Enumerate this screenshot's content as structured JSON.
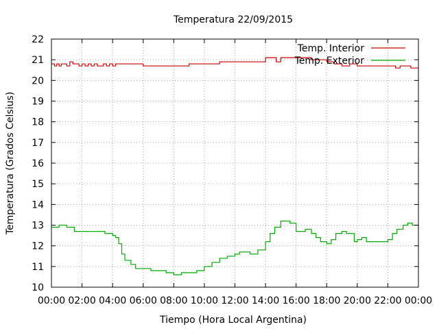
{
  "chart_data": {
    "type": "line",
    "title": "Temperatura 22/09/2015",
    "xlabel": "Tiempo (Hora Local Argentina)",
    "ylabel": "Temperatura (Grados Celsius)",
    "xlim": [
      0,
      24
    ],
    "ylim": [
      10,
      22
    ],
    "x_ticks": [
      0,
      2,
      4,
      6,
      8,
      10,
      12,
      14,
      16,
      18,
      20,
      22,
      24
    ],
    "x_tick_labels": [
      "00:00",
      "02:00",
      "04:00",
      "06:00",
      "08:00",
      "10:00",
      "12:00",
      "14:00",
      "16:00",
      "18:00",
      "20:00",
      "22:00",
      "00:00"
    ],
    "y_ticks": [
      10,
      11,
      12,
      13,
      14,
      15,
      16,
      17,
      18,
      19,
      20,
      21,
      22
    ],
    "y_tick_labels": [
      "10",
      "11",
      "12",
      "13",
      "14",
      "15",
      "16",
      "17",
      "18",
      "19",
      "20",
      "21",
      "22"
    ],
    "grid": true,
    "legend_position": "top-right",
    "series": [
      {
        "name": "Temp. Interior",
        "color": "#cc0000",
        "x": [
          0,
          0.2,
          0.35,
          0.5,
          0.65,
          0.8,
          1.0,
          1.2,
          1.4,
          1.6,
          1.8,
          2.0,
          2.2,
          2.4,
          2.6,
          2.8,
          3.0,
          3.2,
          3.4,
          3.6,
          3.8,
          4.0,
          4.2,
          4.4,
          4.6,
          5.0,
          5.5,
          6.0,
          6.5,
          7.0,
          8.0,
          9.0,
          10.0,
          11.0,
          12.0,
          13.0,
          14.0,
          14.4,
          14.7,
          15.0,
          15.5,
          16.0,
          17.0,
          18.0,
          18.5,
          19.0,
          19.5,
          20.0,
          21.0,
          22.0,
          22.5,
          22.8,
          23.0,
          23.5,
          24.0
        ],
        "y": [
          20.8,
          20.7,
          20.8,
          20.7,
          20.8,
          20.8,
          20.7,
          20.9,
          20.8,
          20.8,
          20.7,
          20.8,
          20.7,
          20.8,
          20.7,
          20.8,
          20.7,
          20.7,
          20.8,
          20.7,
          20.8,
          20.7,
          20.8,
          20.8,
          20.8,
          20.8,
          20.8,
          20.7,
          20.7,
          20.7,
          20.7,
          20.8,
          20.8,
          20.9,
          20.9,
          20.9,
          21.1,
          21.1,
          20.9,
          21.1,
          21.1,
          21.1,
          21.0,
          20.9,
          20.8,
          20.7,
          20.8,
          20.7,
          20.7,
          20.7,
          20.6,
          20.7,
          20.7,
          20.6,
          20.6
        ]
      },
      {
        "name": "Temp. Exterior",
        "color": "#00aa00",
        "x": [
          0,
          0.5,
          1.0,
          1.5,
          2.0,
          2.5,
          3.0,
          3.5,
          4.0,
          4.2,
          4.4,
          4.6,
          4.8,
          5.0,
          5.2,
          5.5,
          6.0,
          6.5,
          7.0,
          7.5,
          8.0,
          8.5,
          9.0,
          9.5,
          10.0,
          10.5,
          11.0,
          11.5,
          12.0,
          12.3,
          12.6,
          13.0,
          13.5,
          14.0,
          14.3,
          14.6,
          15.0,
          15.3,
          15.6,
          16.0,
          16.3,
          16.6,
          17.0,
          17.3,
          17.6,
          18.0,
          18.3,
          18.6,
          19.0,
          19.3,
          19.6,
          19.8,
          20.0,
          20.3,
          20.6,
          21.0,
          21.5,
          22.0,
          22.3,
          22.6,
          23.0,
          23.3,
          23.6,
          24.0
        ],
        "y": [
          12.9,
          13.0,
          12.9,
          12.7,
          12.7,
          12.7,
          12.7,
          12.6,
          12.5,
          12.4,
          12.1,
          11.6,
          11.3,
          11.3,
          11.1,
          10.9,
          10.9,
          10.8,
          10.8,
          10.7,
          10.6,
          10.7,
          10.7,
          10.8,
          11.0,
          11.2,
          11.4,
          11.5,
          11.6,
          11.7,
          11.7,
          11.6,
          11.8,
          12.2,
          12.6,
          12.9,
          13.2,
          13.2,
          13.1,
          12.7,
          12.7,
          12.8,
          12.6,
          12.4,
          12.2,
          12.1,
          12.3,
          12.6,
          12.7,
          12.6,
          12.6,
          12.2,
          12.3,
          12.4,
          12.2,
          12.2,
          12.2,
          12.3,
          12.6,
          12.8,
          13.0,
          13.1,
          13.0,
          12.8
        ]
      }
    ]
  }
}
